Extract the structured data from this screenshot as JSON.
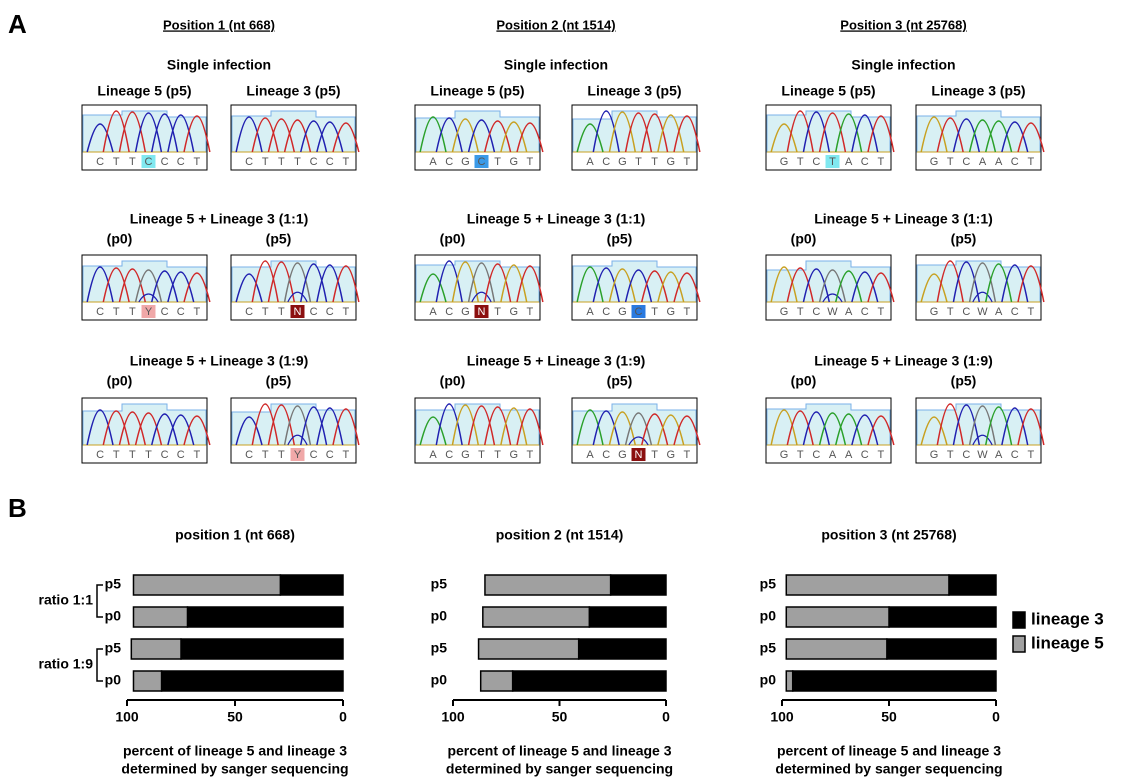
{
  "panel_a": {
    "label": "A",
    "columns": [
      {
        "header": "Position 1 (nt 668)",
        "single": {
          "title": "Single infection",
          "labels": [
            "Lineage 5 (p5)",
            "Lineage 3 (p5)"
          ],
          "traces": [
            {
              "bases": [
                "C",
                "T",
                "T",
                "C",
                "C",
                "C",
                "T"
              ],
              "highlight": "#80e8f0"
            },
            {
              "bases": [
                "C",
                "T",
                "T",
                "T",
                "C",
                "C",
                "T"
              ],
              "highlight": null
            }
          ]
        },
        "mixes": [
          {
            "title": "Lineage 5 + Lineage 3 (1:1)",
            "labels": [
              "(p0)",
              "(p5)"
            ],
            "traces": [
              {
                "bases": [
                  "C",
                  "T",
                  "T",
                  "Y",
                  "C",
                  "C",
                  "T"
                ],
                "highlight": "#f0a8a8"
              },
              {
                "bases": [
                  "C",
                  "T",
                  "T",
                  "N",
                  "C",
                  "C",
                  "T"
                ],
                "highlight": "#8b1010"
              }
            ]
          },
          {
            "title": "Lineage 5 + Lineage 3 (1:9)",
            "labels": [
              "(p0)",
              "(p5)"
            ],
            "traces": [
              {
                "bases": [
                  "C",
                  "T",
                  "T",
                  "T",
                  "C",
                  "C",
                  "T"
                ],
                "highlight": null
              },
              {
                "bases": [
                  "C",
                  "T",
                  "T",
                  "Y",
                  "C",
                  "C",
                  "T"
                ],
                "highlight": "#f0a8a8"
              }
            ]
          }
        ]
      },
      {
        "header": "Position 2 (nt 1514)",
        "single": {
          "title": "Single infection",
          "labels": [
            "Lineage 5 (p5)",
            "Lineage 3 (p5)"
          ],
          "traces": [
            {
              "bases": [
                "A",
                "C",
                "G",
                "C",
                "T",
                "G",
                "T"
              ],
              "highlight": "#3a9ae8"
            },
            {
              "bases": [
                "A",
                "C",
                "G",
                "T",
                "T",
                "G",
                "T"
              ],
              "highlight": null
            }
          ]
        },
        "mixes": [
          {
            "title": "Lineage 5 + Lineage 3 (1:1)",
            "labels": [
              "(p0)",
              "(p5)"
            ],
            "traces": [
              {
                "bases": [
                  "A",
                  "C",
                  "G",
                  "N",
                  "T",
                  "G",
                  "T"
                ],
                "highlight": "#8b1010"
              },
              {
                "bases": [
                  "A",
                  "C",
                  "G",
                  "C",
                  "T",
                  "G",
                  "T"
                ],
                "highlight": "#2a7ae0"
              }
            ]
          },
          {
            "title": "Lineage 5 + Lineage 3 (1:9)",
            "labels": [
              "(p0)",
              "(p5)"
            ],
            "traces": [
              {
                "bases": [
                  "A",
                  "C",
                  "G",
                  "T",
                  "T",
                  "G",
                  "T"
                ],
                "highlight": null
              },
              {
                "bases": [
                  "A",
                  "C",
                  "G",
                  "N",
                  "T",
                  "G",
                  "T"
                ],
                "highlight": "#8b1010"
              }
            ]
          }
        ]
      },
      {
        "header": "Position 3 (nt 25768)",
        "single": {
          "title": "Single infection",
          "labels": [
            "Lineage 5 (p5)",
            "Lineage 3 (p5)"
          ],
          "traces": [
            {
              "bases": [
                "G",
                "T",
                "C",
                "T",
                "A",
                "C",
                "T"
              ],
              "highlight": "#80e8f0"
            },
            {
              "bases": [
                "G",
                "T",
                "C",
                "A",
                "A",
                "C",
                "T"
              ],
              "highlight": null
            }
          ]
        },
        "mixes": [
          {
            "title": "Lineage 5 + Lineage 3 (1:1)",
            "labels": [
              "(p0)",
              "(p5)"
            ],
            "traces": [
              {
                "bases": [
                  "G",
                  "T",
                  "C",
                  "W",
                  "A",
                  "C",
                  "T"
                ],
                "highlight": null
              },
              {
                "bases": [
                  "G",
                  "T",
                  "C",
                  "W",
                  "A",
                  "C",
                  "T"
                ],
                "highlight": null
              }
            ]
          },
          {
            "title": "Lineage 5 + Lineage 3 (1:9)",
            "labels": [
              "(p0)",
              "(p5)"
            ],
            "traces": [
              {
                "bases": [
                  "G",
                  "T",
                  "C",
                  "A",
                  "A",
                  "C",
                  "T"
                ],
                "highlight": null
              },
              {
                "bases": [
                  "G",
                  "T",
                  "C",
                  "W",
                  "A",
                  "C",
                  "T"
                ],
                "highlight": null
              }
            ]
          }
        ]
      }
    ]
  },
  "panel_b": {
    "label": "B"
  },
  "chart_data": [
    {
      "type": "bar",
      "orientation": "horizontal",
      "title": "position 1 (nt 668)",
      "categories": [
        "p5",
        "p0",
        "p5",
        "p0"
      ],
      "groups": [
        "ratio 1:1",
        "ratio 1:9"
      ],
      "series": [
        {
          "color": "#000000",
          "values": [
            29,
            72,
            75,
            84
          ]
        },
        {
          "color": "#a0a0a0",
          "values": [
            68,
            25,
            23,
            13
          ]
        }
      ],
      "xlim": [
        100,
        0
      ],
      "xticks": [
        100,
        50,
        0
      ],
      "xlabel": [
        "percent of lineage 5 and lineage 3",
        "determined by sanger sequencing"
      ]
    },
    {
      "type": "bar",
      "orientation": "horizontal",
      "title": "position 2 (nt 1514)",
      "categories": [
        "p5",
        "p0",
        "p5",
        "p0"
      ],
      "series": [
        {
          "color": "#000000",
          "values": [
            26,
            36,
            41,
            72
          ]
        },
        {
          "color": "#a0a0a0",
          "values": [
            59,
            50,
            47,
            15
          ]
        }
      ],
      "xlim": [
        100,
        0
      ],
      "xticks": [
        100,
        50,
        0
      ],
      "xlabel": [
        "percent of lineage 5 and lineage 3",
        "determined by sanger sequencing"
      ]
    },
    {
      "type": "bar",
      "orientation": "horizontal",
      "title": "position 3 (nt 25768)",
      "categories": [
        "p5",
        "p0",
        "p5",
        "p0"
      ],
      "series": [
        {
          "name": "lineage 3",
          "color": "#000000",
          "values": [
            22,
            50,
            51,
            95
          ]
        },
        {
          "name": "lineage 5",
          "color": "#a0a0a0",
          "values": [
            76,
            48,
            47,
            3
          ]
        }
      ],
      "xlim": [
        100,
        0
      ],
      "xticks": [
        100,
        50,
        0
      ],
      "xlabel": [
        "percent of lineage 5 and lineage 3",
        "determined by sanger sequencing"
      ],
      "legend": "right"
    }
  ]
}
